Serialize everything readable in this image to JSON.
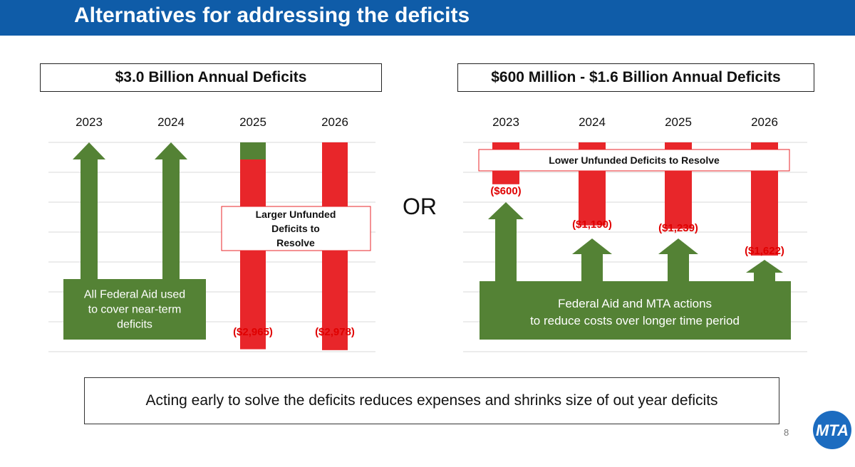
{
  "slide": {
    "title": "Alternatives for addressing the deficits",
    "or_label": "OR",
    "bottom_message": "Acting early to solve the deficits reduces expenses and shrinks size of out year deficits",
    "page_number": "8",
    "logo_text": "MTA"
  },
  "colors": {
    "header": "#0f5ca8",
    "deficit_red": "#e8262a",
    "aid_green": "#548235",
    "label_red": "#e00000",
    "logo_blue": "#1c6cc0"
  },
  "chart_data": [
    {
      "type": "bar",
      "title": "$3.0 Billion Annual Deficits",
      "categories": [
        "2023",
        "2024",
        "2025",
        "2026"
      ],
      "deficits": [
        {
          "year": "2023",
          "value": null,
          "label": ""
        },
        {
          "year": "2024",
          "value": null,
          "label": ""
        },
        {
          "year": "2025",
          "value": -2965,
          "label": "($2,965)"
        },
        {
          "year": "2026",
          "value": -2978,
          "label": "($2,978)"
        }
      ],
      "federal_aid_arrows": [
        "2023",
        "2024"
      ],
      "green_cap_years": [
        "2025"
      ],
      "ylim": [
        -3000,
        0
      ],
      "grid": true,
      "annotations": {
        "unfunded": "Larger Unfunded Deficits to Resolve",
        "aid_box": "All Federal Aid used to cover near-term deficits"
      }
    },
    {
      "type": "bar",
      "title": "$600 Million - $1.6 Billion Annual Deficits",
      "categories": [
        "2023",
        "2024",
        "2025",
        "2026"
      ],
      "deficits": [
        {
          "year": "2023",
          "value": -600,
          "label": "($600)"
        },
        {
          "year": "2024",
          "value": -1190,
          "label": "($1,190)"
        },
        {
          "year": "2025",
          "value": -1239,
          "label": "($1,239)"
        },
        {
          "year": "2026",
          "value": -1622,
          "label": "($1,622)"
        }
      ],
      "federal_aid_arrows": [
        "2023",
        "2024",
        "2025",
        "2026"
      ],
      "ylim": [
        -3000,
        0
      ],
      "grid": true,
      "annotations": {
        "unfunded": "Lower Unfunded Deficits to Resolve",
        "aid_box": "Federal Aid and MTA actions to reduce costs over longer time period"
      }
    }
  ]
}
